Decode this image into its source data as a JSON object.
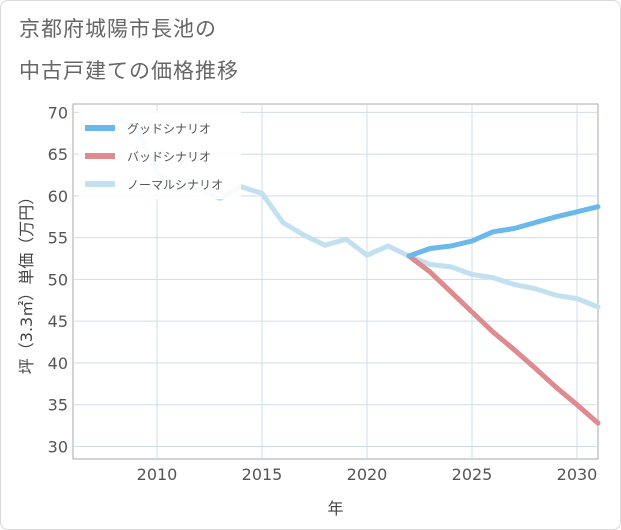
{
  "title_line1": "京都府城陽市長池の",
  "title_line2": "中古戸建ての価格推移",
  "chart_data": {
    "type": "line",
    "xlabel": "年",
    "ylabel": "坪（3.3㎡）単価（万円）",
    "xlim": [
      2006,
      2031
    ],
    "ylim": [
      28.5,
      71
    ],
    "xticks": [
      2010,
      2015,
      2020,
      2025,
      2030
    ],
    "yticks": [
      30,
      35,
      40,
      45,
      50,
      55,
      60,
      65,
      70
    ],
    "grid": true,
    "legend_position": "top-left",
    "series": [
      {
        "name": "ノーマルシナリオ",
        "color": "#c2e0f0",
        "x": [
          2008,
          2009,
          2010,
          2011,
          2012,
          2013,
          2014,
          2015,
          2016,
          2017,
          2018,
          2019,
          2020,
          2021,
          2022,
          2023,
          2024,
          2025,
          2026,
          2027,
          2028,
          2029,
          2030,
          2031
        ],
        "y": [
          69.3,
          68.5,
          62.7,
          61.2,
          60.7,
          59.7,
          61.1,
          60.3,
          56.8,
          55.3,
          54.1,
          54.8,
          52.9,
          54.0,
          52.8,
          51.8,
          51.5,
          50.6,
          50.2,
          49.4,
          48.9,
          48.1,
          47.7,
          46.7
        ]
      },
      {
        "name": "バッドシナリオ",
        "color": "#de8a8e",
        "x": [
          2022,
          2023,
          2024,
          2025,
          2026,
          2027,
          2028,
          2029,
          2030,
          2031
        ],
        "y": [
          52.8,
          50.9,
          48.5,
          46.1,
          43.7,
          41.6,
          39.4,
          37.1,
          35.0,
          32.8
        ]
      },
      {
        "name": "グッドシナリオ",
        "color": "#6bb8eb",
        "x": [
          2022,
          2023,
          2024,
          2025,
          2026,
          2027,
          2028,
          2029,
          2030,
          2031
        ],
        "y": [
          52.8,
          53.7,
          54.0,
          54.6,
          55.7,
          56.1,
          56.8,
          57.5,
          58.1,
          58.7
        ]
      }
    ],
    "legend_order": [
      "グッドシナリオ",
      "バッドシナリオ",
      "ノーマルシナリオ"
    ]
  }
}
